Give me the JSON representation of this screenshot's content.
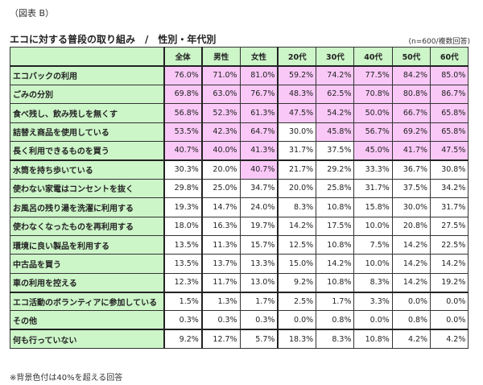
{
  "figure_label": "（図表 B）",
  "title": "エコに対する普段の取り組み　/　性別・年代別",
  "sample_note": "(n=600/複数回答)",
  "footnote": "※背景色付は40%を超える回答",
  "colors": {
    "label_bg": "#ccf5c8",
    "highlight_bg": "#f9c8f7",
    "normal_bg": "#ffffff"
  },
  "table": {
    "columns": [
      "全体",
      "男性",
      "女性",
      "20代",
      "30代",
      "40代",
      "50代",
      "60代"
    ],
    "rows": [
      {
        "label": "エコバックの利用",
        "values": [
          "76.0%",
          "71.0%",
          "81.0%",
          "59.2%",
          "74.2%",
          "77.5%",
          "84.2%",
          "85.0%"
        ]
      },
      {
        "label": "ごみの分別",
        "values": [
          "69.8%",
          "63.0%",
          "76.7%",
          "48.3%",
          "62.5%",
          "70.8%",
          "80.8%",
          "86.7%"
        ]
      },
      {
        "label": "食べ残し、飲み残しを無くす",
        "values": [
          "56.8%",
          "52.3%",
          "61.3%",
          "47.5%",
          "54.2%",
          "50.0%",
          "66.7%",
          "65.8%"
        ]
      },
      {
        "label": "詰替え商品を使用している",
        "values": [
          "53.5%",
          "42.3%",
          "64.7%",
          "30.0%",
          "45.8%",
          "56.7%",
          "69.2%",
          "65.8%"
        ]
      },
      {
        "label": "長く利用できるものを買う",
        "values": [
          "40.7%",
          "40.0%",
          "41.3%",
          "31.7%",
          "37.5%",
          "45.0%",
          "41.7%",
          "47.5%"
        ]
      },
      {
        "label": "水筒を持ち歩いている",
        "values": [
          "30.3%",
          "20.0%",
          "40.7%",
          "21.7%",
          "29.2%",
          "33.3%",
          "36.7%",
          "30.8%"
        ]
      },
      {
        "label": "使わない家電はコンセントを抜く",
        "values": [
          "29.8%",
          "25.0%",
          "34.7%",
          "20.0%",
          "25.8%",
          "31.7%",
          "37.5%",
          "34.2%"
        ]
      },
      {
        "label": "お風呂の残り湯を洗濯に利用する",
        "values": [
          "19.3%",
          "14.7%",
          "24.0%",
          "8.3%",
          "10.8%",
          "15.8%",
          "30.0%",
          "31.7%"
        ]
      },
      {
        "label": "使わなくなったものを再利用する",
        "values": [
          "18.0%",
          "16.3%",
          "19.7%",
          "14.2%",
          "17.5%",
          "10.0%",
          "20.8%",
          "27.5%"
        ]
      },
      {
        "label": "環境に良い製品を利用する",
        "values": [
          "13.5%",
          "11.3%",
          "15.7%",
          "12.5%",
          "10.8%",
          "7.5%",
          "14.2%",
          "22.5%"
        ]
      },
      {
        "label": "中古品を買う",
        "values": [
          "13.5%",
          "13.7%",
          "13.3%",
          "15.0%",
          "14.2%",
          "10.0%",
          "14.2%",
          "14.2%"
        ]
      },
      {
        "label": "車の利用を控える",
        "values": [
          "12.3%",
          "11.7%",
          "13.0%",
          "9.2%",
          "10.8%",
          "8.3%",
          "14.2%",
          "19.2%"
        ]
      },
      {
        "label": "エコ活動のボランティアに参加している",
        "values": [
          "1.5%",
          "1.3%",
          "1.7%",
          "2.5%",
          "1.7%",
          "3.3%",
          "0.0%",
          "0.0%"
        ]
      },
      {
        "label": "その他",
        "values": [
          "0.3%",
          "0.3%",
          "0.3%",
          "0.0%",
          "0.8%",
          "0.0%",
          "0.8%",
          "0.0%"
        ]
      },
      {
        "label": "何も行っていない",
        "values": [
          "9.2%",
          "12.7%",
          "5.7%",
          "18.3%",
          "8.3%",
          "10.8%",
          "4.2%",
          "4.2%"
        ]
      }
    ],
    "highlighted": [
      [
        1,
        1,
        1,
        1,
        1,
        1,
        1,
        1
      ],
      [
        1,
        1,
        1,
        1,
        1,
        1,
        1,
        1
      ],
      [
        1,
        1,
        1,
        1,
        1,
        1,
        1,
        1
      ],
      [
        1,
        1,
        1,
        0,
        1,
        1,
        1,
        1
      ],
      [
        1,
        1,
        1,
        0,
        0,
        1,
        1,
        1
      ],
      [
        0,
        0,
        1,
        0,
        0,
        0,
        0,
        0
      ],
      [
        0,
        0,
        0,
        0,
        0,
        0,
        0,
        0
      ],
      [
        0,
        0,
        0,
        0,
        0,
        0,
        0,
        0
      ],
      [
        0,
        0,
        0,
        0,
        0,
        0,
        0,
        0
      ],
      [
        0,
        0,
        0,
        0,
        0,
        0,
        0,
        0
      ],
      [
        0,
        0,
        0,
        0,
        0,
        0,
        0,
        0
      ],
      [
        0,
        0,
        0,
        0,
        0,
        0,
        0,
        0
      ],
      [
        0,
        0,
        0,
        0,
        0,
        0,
        0,
        0
      ],
      [
        0,
        0,
        0,
        0,
        0,
        0,
        0,
        0
      ],
      [
        0,
        0,
        0,
        0,
        0,
        0,
        0,
        0
      ]
    ]
  },
  "chart_data": {
    "type": "table",
    "title": "エコに対する普段の取り組み / 性別・年代別",
    "subtitle": "(n=600/複数回答)",
    "unit": "%",
    "categories": [
      "エコバックの利用",
      "ごみの分別",
      "食べ残し、飲み残しを無くす",
      "詰替え商品を使用している",
      "長く利用できるものを買う",
      "水筒を持ち歩いている",
      "使わない家電はコンセントを抜く",
      "お風呂の残り湯を洗濯に利用する",
      "使わなくなったものを再利用する",
      "環境に良い製品を利用する",
      "中古品を買う",
      "車の利用を控える",
      "エコ活動のボランティアに参加している",
      "その他",
      "何も行っていない"
    ],
    "series": [
      {
        "name": "全体",
        "values": [
          76.0,
          69.8,
          56.8,
          53.5,
          40.7,
          30.3,
          29.8,
          19.3,
          18.0,
          13.5,
          13.5,
          12.3,
          1.5,
          0.3,
          9.2
        ]
      },
      {
        "name": "男性",
        "values": [
          71.0,
          63.0,
          52.3,
          42.3,
          40.0,
          20.0,
          25.0,
          14.7,
          16.3,
          11.3,
          13.7,
          11.7,
          1.3,
          0.3,
          12.7
        ]
      },
      {
        "name": "女性",
        "values": [
          81.0,
          76.7,
          61.3,
          64.7,
          41.3,
          40.7,
          34.7,
          24.0,
          19.7,
          15.7,
          13.3,
          13.0,
          1.7,
          0.3,
          5.7
        ]
      },
      {
        "name": "20代",
        "values": [
          59.2,
          48.3,
          47.5,
          30.0,
          31.7,
          21.7,
          20.0,
          8.3,
          14.2,
          12.5,
          15.0,
          9.2,
          2.5,
          0.0,
          18.3
        ]
      },
      {
        "name": "30代",
        "values": [
          74.2,
          62.5,
          54.2,
          45.8,
          37.5,
          29.2,
          25.8,
          10.8,
          17.5,
          10.8,
          14.2,
          10.8,
          1.7,
          0.8,
          8.3
        ]
      },
      {
        "name": "40代",
        "values": [
          77.5,
          70.8,
          50.0,
          56.7,
          45.0,
          33.3,
          31.7,
          15.8,
          10.0,
          7.5,
          10.0,
          8.3,
          3.3,
          0.0,
          10.8
        ]
      },
      {
        "name": "50代",
        "values": [
          84.2,
          80.8,
          66.7,
          69.2,
          41.7,
          36.7,
          37.5,
          30.0,
          20.8,
          14.2,
          14.2,
          14.2,
          0.0,
          0.8,
          4.2
        ]
      },
      {
        "name": "60代",
        "values": [
          85.0,
          86.7,
          65.8,
          65.8,
          47.5,
          30.8,
          34.2,
          31.7,
          27.5,
          22.5,
          14.2,
          19.2,
          0.0,
          0.0,
          4.2
        ]
      }
    ],
    "annotations": [
      "※背景色付は40%を超える回答"
    ]
  }
}
